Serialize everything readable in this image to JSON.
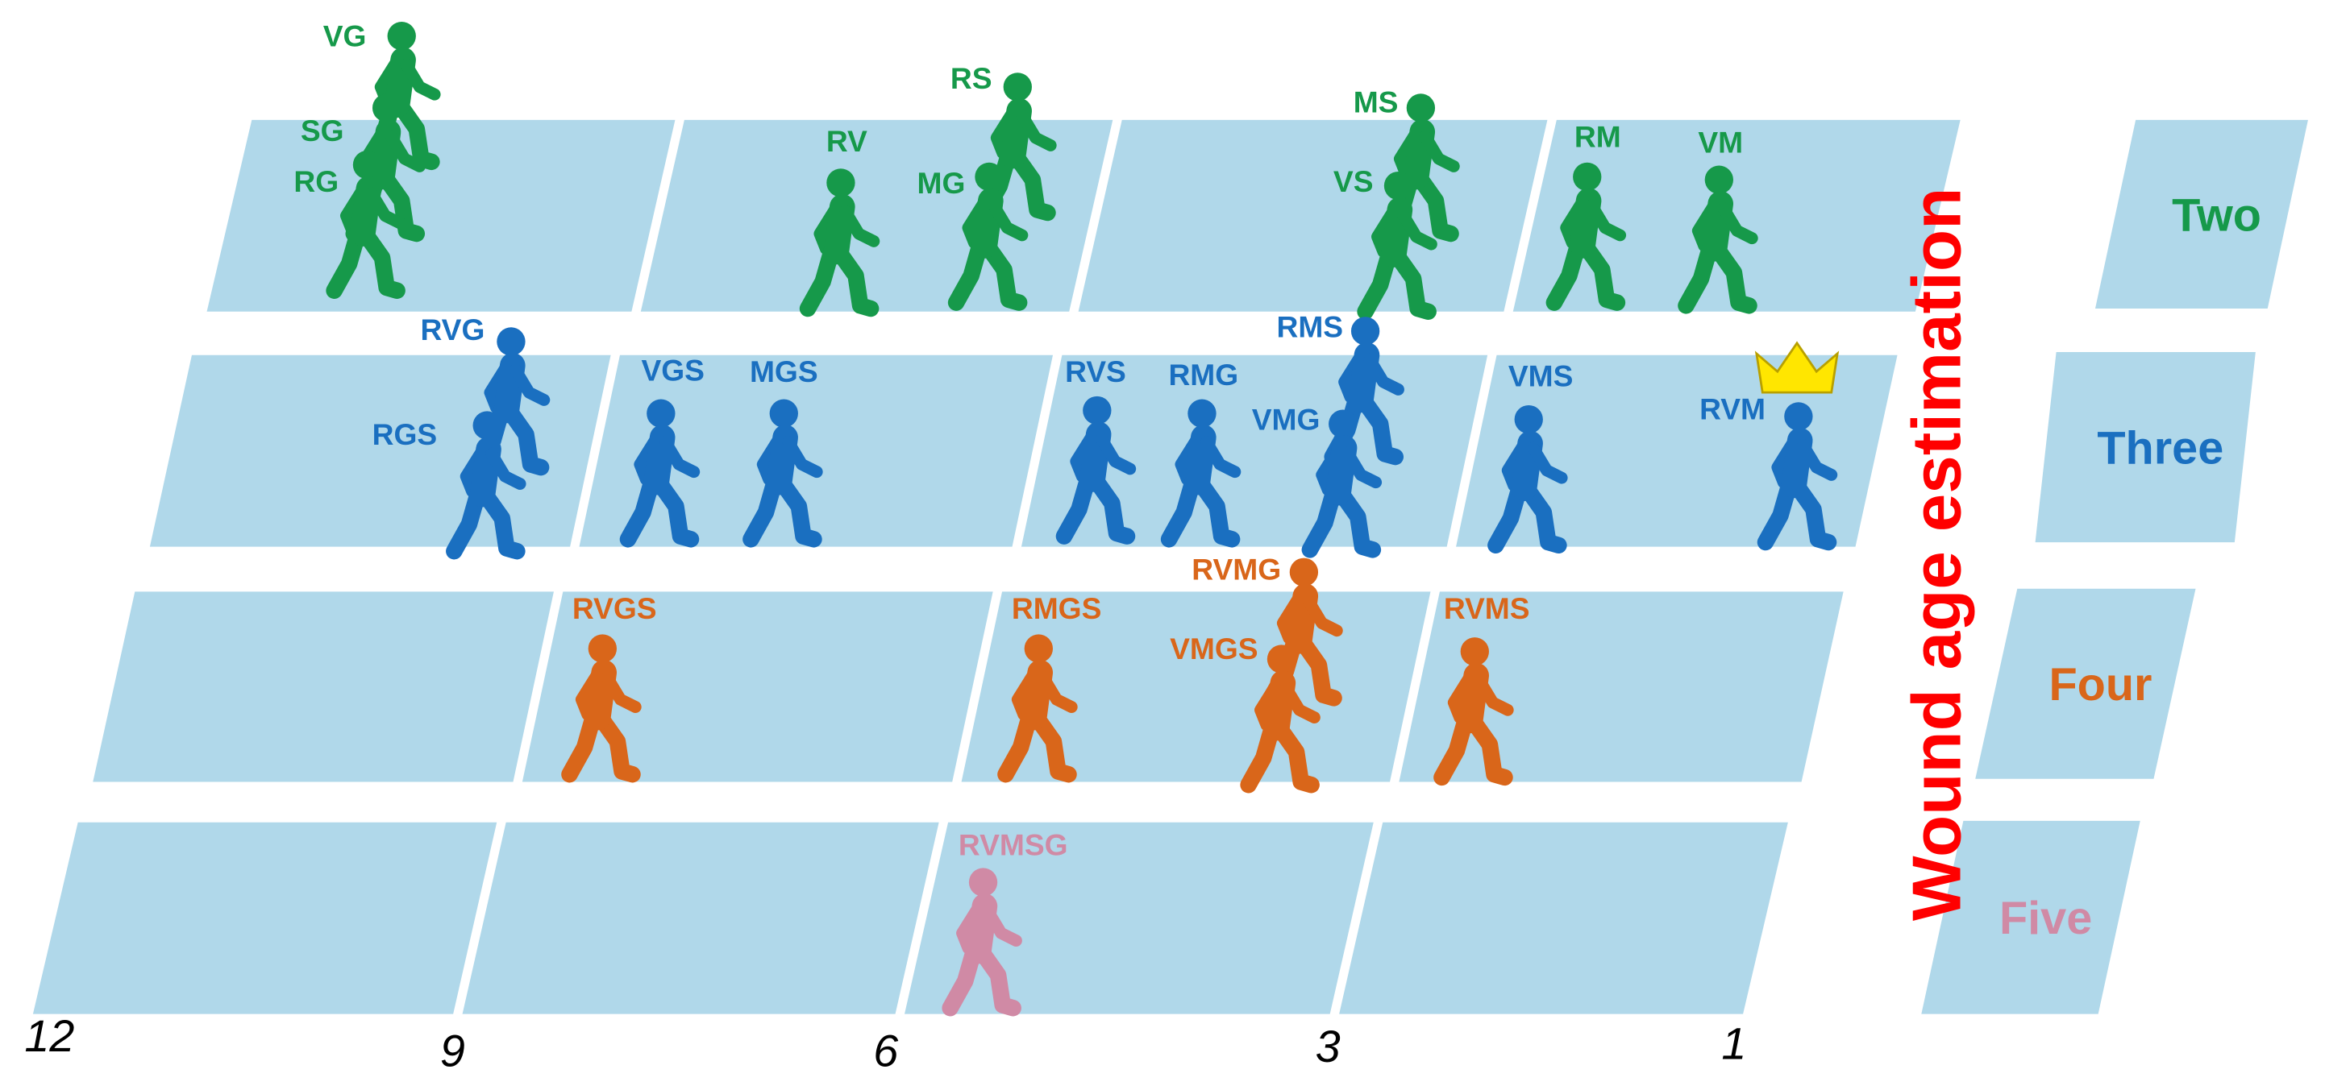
{
  "rows": [
    {
      "label": "Two",
      "color": "#16994a",
      "people": [
        "VG",
        "SG",
        "RG",
        "RV",
        "RS",
        "MG",
        "MS",
        "VS",
        "RM",
        "VM"
      ]
    },
    {
      "label": "Three",
      "color": "#1a6fc0",
      "people": [
        "RVG",
        "RGS",
        "VGS",
        "MGS",
        "RVS",
        "RMG",
        "RMS",
        "VMG",
        "VMS",
        "RVM"
      ]
    },
    {
      "label": "Four",
      "color": "#d9661a",
      "people": [
        "RVGS",
        "RMGS",
        "RVMG",
        "VMGS",
        "RVMS"
      ]
    },
    {
      "label": "Five",
      "color": "#d08aa5",
      "people": [
        "RVMSG"
      ]
    }
  ],
  "side_title": "Wound age estimation",
  "axis_labels": [
    "12",
    "9",
    "6",
    "3",
    "1"
  ]
}
